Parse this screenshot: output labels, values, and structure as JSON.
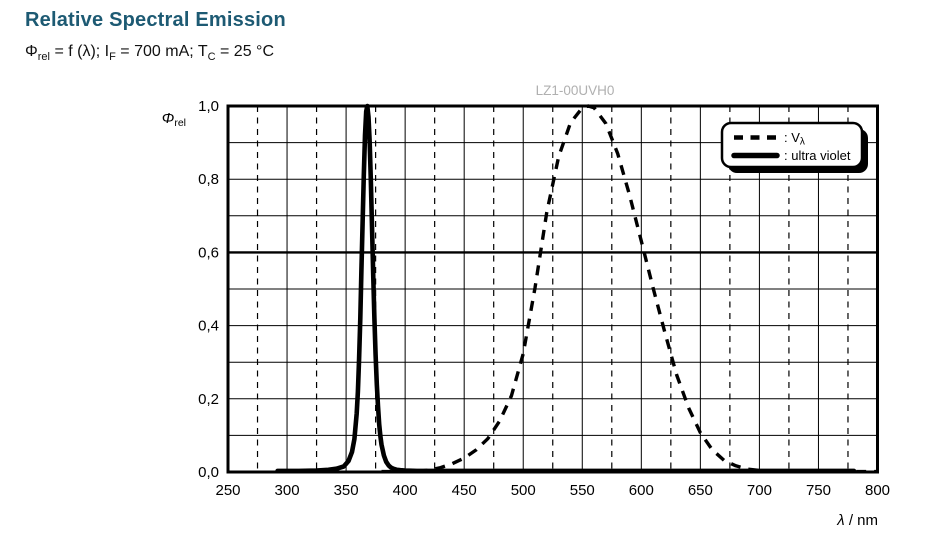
{
  "header": {
    "title": "Relative Spectral Emission",
    "conditions": {
      "phi": "Φ",
      "phi_sub": "rel",
      "seg1": " = f (λ); I",
      "if_sub": "F",
      "seg2": " = 700 mA; T",
      "tc_sub": "C",
      "seg3": " = 25 °C"
    }
  },
  "colors": {
    "title": "#1d5a73",
    "watermark": "#b0b0b0",
    "curves": "#000000",
    "background": "#ffffff"
  },
  "axis": {
    "y_symbol": "Φ",
    "y_symbol_sub": "rel",
    "x_symbol": "λ",
    "x_unit": " / nm"
  },
  "legend": {
    "items": [
      {
        "prefix": ": V",
        "sub": "λ",
        "line_style": "dashed"
      },
      {
        "label": ": ultra violet",
        "line_style": "solid"
      }
    ]
  },
  "chart_data": {
    "type": "line",
    "title": "LZ1-00UVH0",
    "xlabel": "λ / nm",
    "ylabel": "Φrel",
    "xlim": [
      250,
      800
    ],
    "ylim": [
      0,
      1
    ],
    "x_ticks": [
      250,
      300,
      350,
      400,
      450,
      500,
      550,
      600,
      650,
      700,
      750,
      800
    ],
    "y_ticks": [
      0,
      0.2,
      0.4,
      0.6,
      0.8,
      1.0
    ],
    "y_tick_labels": [
      "0,0",
      "0,2",
      "0,4",
      "0,6",
      "0,8",
      "1,0"
    ],
    "y_minor_step": 0.1,
    "grid": "horizontal solid every 0.1; vertical solid every 50 nm; vertical dashed every 25 nm",
    "legend_position": "top-right",
    "series": [
      {
        "name": "Vλ",
        "style": "dashed",
        "points": [
          [
            380,
            0.001
          ],
          [
            400,
            0.001
          ],
          [
            410,
            0.002
          ],
          [
            420,
            0.005
          ],
          [
            430,
            0.012
          ],
          [
            440,
            0.023
          ],
          [
            450,
            0.038
          ],
          [
            460,
            0.06
          ],
          [
            470,
            0.091
          ],
          [
            480,
            0.139
          ],
          [
            490,
            0.208
          ],
          [
            500,
            0.323
          ],
          [
            510,
            0.503
          ],
          [
            520,
            0.71
          ],
          [
            530,
            0.862
          ],
          [
            540,
            0.954
          ],
          [
            550,
            0.995
          ],
          [
            555,
            1.0
          ],
          [
            560,
            0.995
          ],
          [
            570,
            0.952
          ],
          [
            580,
            0.87
          ],
          [
            590,
            0.757
          ],
          [
            600,
            0.631
          ],
          [
            610,
            0.503
          ],
          [
            620,
            0.381
          ],
          [
            630,
            0.265
          ],
          [
            640,
            0.175
          ],
          [
            650,
            0.107
          ],
          [
            660,
            0.061
          ],
          [
            670,
            0.032
          ],
          [
            680,
            0.017
          ],
          [
            690,
            0.008
          ],
          [
            700,
            0.004
          ],
          [
            710,
            0.002
          ],
          [
            720,
            0.001
          ],
          [
            740,
            0.001
          ],
          [
            760,
            0.001
          ],
          [
            780,
            0.001
          ],
          [
            800,
            0.001
          ]
        ]
      },
      {
        "name": "ultra violet",
        "style": "solid",
        "points": [
          [
            292,
            0.003
          ],
          [
            310,
            0.003
          ],
          [
            325,
            0.004
          ],
          [
            335,
            0.006
          ],
          [
            342,
            0.009
          ],
          [
            348,
            0.015
          ],
          [
            352,
            0.03
          ],
          [
            355,
            0.055
          ],
          [
            357,
            0.09
          ],
          [
            359,
            0.16
          ],
          [
            360,
            0.22
          ],
          [
            361,
            0.31
          ],
          [
            362,
            0.42
          ],
          [
            363,
            0.55
          ],
          [
            364,
            0.68
          ],
          [
            365,
            0.81
          ],
          [
            366,
            0.92
          ],
          [
            367,
            0.985
          ],
          [
            368,
            1.0
          ],
          [
            369,
            0.97
          ],
          [
            370,
            0.9
          ],
          [
            371,
            0.79
          ],
          [
            372,
            0.66
          ],
          [
            373,
            0.53
          ],
          [
            374,
            0.42
          ],
          [
            375,
            0.32
          ],
          [
            376,
            0.24
          ],
          [
            377,
            0.18
          ],
          [
            378,
            0.13
          ],
          [
            379,
            0.1
          ],
          [
            380,
            0.075
          ],
          [
            382,
            0.045
          ],
          [
            384,
            0.028
          ],
          [
            386,
            0.018
          ],
          [
            388,
            0.012
          ],
          [
            390,
            0.009
          ],
          [
            393,
            0.006
          ],
          [
            396,
            0.005
          ],
          [
            400,
            0.004
          ],
          [
            410,
            0.003
          ],
          [
            430,
            0.003
          ],
          [
            460,
            0.003
          ],
          [
            500,
            0.003
          ],
          [
            550,
            0.003
          ],
          [
            600,
            0.003
          ],
          [
            650,
            0.003
          ],
          [
            700,
            0.003
          ],
          [
            740,
            0.003
          ],
          [
            780,
            0.003
          ]
        ]
      }
    ]
  }
}
